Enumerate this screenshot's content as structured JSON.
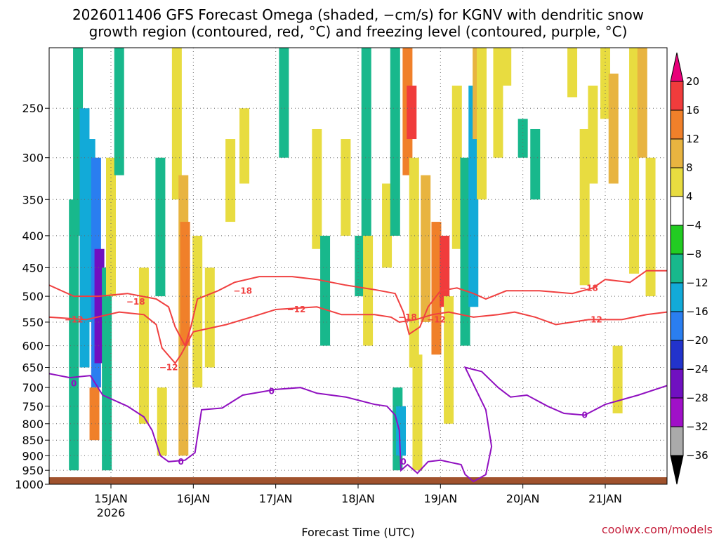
{
  "chart_data": {
    "type": "heatmap",
    "title_line1": "2026011406 GFS Forecast Omega (shaded, −cm/s) for KGNV with dendritic snow",
    "title_line2": "growth region (contoured, red, °C) and freezing level (contoured, purple, °C)",
    "xlabel": "Forecast Time (UTC)",
    "ylabel": "",
    "y_scale": "log-pressure",
    "ylim": [
      1000,
      200
    ],
    "y_ticks": [
      250,
      300,
      350,
      400,
      450,
      500,
      550,
      600,
      650,
      700,
      750,
      800,
      850,
      900,
      950,
      1000
    ],
    "x_ticks": [
      {
        "label": "15JAN",
        "sublabel": "2026",
        "day": 15
      },
      {
        "label": "16JAN",
        "day": 16
      },
      {
        "label": "17JAN",
        "day": 17
      },
      {
        "label": "18JAN",
        "day": 18
      },
      {
        "label": "19JAN",
        "day": 19
      },
      {
        "label": "20JAN",
        "day": 20
      },
      {
        "label": "21JAN",
        "day": 21
      }
    ],
    "xlim_days": [
      14.25,
      21.75
    ],
    "grid": true,
    "colorbar": {
      "labels": [
        "20",
        "16",
        "12",
        "8",
        "4",
        "−4",
        "−8",
        "−12",
        "−16",
        "−20",
        "−24",
        "−28",
        "−32",
        "−36"
      ],
      "colors": [
        "#e8007a",
        "#f03c3c",
        "#f0802a",
        "#e8b440",
        "#e8dc40",
        "#ffffff",
        "#22cc22",
        "#18b88c",
        "#12aad8",
        "#2a7ef0",
        "#2233cc",
        "#7010c0",
        "#a010c8",
        "#aaaaaa",
        "#000000"
      ]
    },
    "omega_cells": [
      {
        "day": 14.55,
        "p1": 350,
        "p2": 950,
        "val": -9
      },
      {
        "day": 14.6,
        "p1": 200,
        "p2": 400,
        "val": -8
      },
      {
        "day": 14.68,
        "p1": 250,
        "p2": 650,
        "val": -12
      },
      {
        "day": 14.75,
        "p1": 280,
        "p2": 550,
        "val": -14
      },
      {
        "day": 14.82,
        "p1": 300,
        "p2": 700,
        "val": -18
      },
      {
        "day": 14.84,
        "p1": 450,
        "p2": 600,
        "val": -38
      },
      {
        "day": 14.86,
        "p1": 420,
        "p2": 640,
        "val": -26
      },
      {
        "day": 14.8,
        "p1": 700,
        "p2": 850,
        "val": 14
      },
      {
        "day": 14.95,
        "p1": 450,
        "p2": 950,
        "val": -9
      },
      {
        "day": 15.0,
        "p1": 300,
        "p2": 500,
        "val": 5
      },
      {
        "day": 15.1,
        "p1": 180,
        "p2": 320,
        "val": -9
      },
      {
        "day": 15.4,
        "p1": 450,
        "p2": 800,
        "val": 5
      },
      {
        "day": 15.6,
        "p1": 300,
        "p2": 500,
        "val": -9
      },
      {
        "day": 15.62,
        "p1": 700,
        "p2": 900,
        "val": 5
      },
      {
        "day": 15.8,
        "p1": 200,
        "p2": 350,
        "val": 5
      },
      {
        "day": 15.88,
        "p1": 320,
        "p2": 900,
        "val": 10
      },
      {
        "day": 15.9,
        "p1": 380,
        "p2": 600,
        "val": 13
      },
      {
        "day": 16.05,
        "p1": 400,
        "p2": 700,
        "val": 5
      },
      {
        "day": 16.2,
        "p1": 450,
        "p2": 650,
        "val": 5
      },
      {
        "day": 16.45,
        "p1": 280,
        "p2": 380,
        "val": 5
      },
      {
        "day": 16.62,
        "p1": 250,
        "p2": 330,
        "val": 5
      },
      {
        "day": 17.1,
        "p1": 200,
        "p2": 300,
        "val": -9
      },
      {
        "day": 17.5,
        "p1": 270,
        "p2": 420,
        "val": 5
      },
      {
        "day": 17.6,
        "p1": 400,
        "p2": 600,
        "val": -9
      },
      {
        "day": 17.85,
        "p1": 280,
        "p2": 400,
        "val": 5
      },
      {
        "day": 18.02,
        "p1": 400,
        "p2": 500,
        "val": -9
      },
      {
        "day": 18.1,
        "p1": 200,
        "p2": 500,
        "val": -9
      },
      {
        "day": 18.12,
        "p1": 400,
        "p2": 600,
        "val": 5
      },
      {
        "day": 18.35,
        "p1": 330,
        "p2": 450,
        "val": 5
      },
      {
        "day": 18.45,
        "p1": 180,
        "p2": 400,
        "val": -9
      },
      {
        "day": 18.48,
        "p1": 700,
        "p2": 950,
        "val": -9
      },
      {
        "day": 18.52,
        "p1": 750,
        "p2": 900,
        "val": -14
      },
      {
        "day": 18.6,
        "p1": 200,
        "p2": 320,
        "val": 12
      },
      {
        "day": 18.65,
        "p1": 230,
        "p2": 280,
        "val": 18
      },
      {
        "day": 18.68,
        "p1": 300,
        "p2": 650,
        "val": 7
      },
      {
        "day": 18.72,
        "p1": 620,
        "p2": 950,
        "val": 5
      },
      {
        "day": 18.82,
        "p1": 320,
        "p2": 550,
        "val": 10
      },
      {
        "day": 18.95,
        "p1": 380,
        "p2": 620,
        "val": 12
      },
      {
        "day": 19.05,
        "p1": 400,
        "p2": 520,
        "val": 17
      },
      {
        "day": 19.1,
        "p1": 500,
        "p2": 800,
        "val": 7
      },
      {
        "day": 19.2,
        "p1": 230,
        "p2": 420,
        "val": 5
      },
      {
        "day": 19.3,
        "p1": 300,
        "p2": 600,
        "val": -9
      },
      {
        "day": 19.4,
        "p1": 230,
        "p2": 520,
        "val": -12
      },
      {
        "day": 19.45,
        "p1": 180,
        "p2": 280,
        "val": 10
      },
      {
        "day": 19.5,
        "p1": 180,
        "p2": 350,
        "val": 5
      },
      {
        "day": 19.7,
        "p1": 200,
        "p2": 300,
        "val": 5
      },
      {
        "day": 19.8,
        "p1": 180,
        "p2": 230,
        "val": 5
      },
      {
        "day": 20.0,
        "p1": 260,
        "p2": 300,
        "val": -9
      },
      {
        "day": 20.15,
        "p1": 270,
        "p2": 350,
        "val": -9
      },
      {
        "day": 20.6,
        "p1": 200,
        "p2": 240,
        "val": 5
      },
      {
        "day": 20.75,
        "p1": 270,
        "p2": 480,
        "val": 5
      },
      {
        "day": 20.85,
        "p1": 230,
        "p2": 330,
        "val": 5
      },
      {
        "day": 21.0,
        "p1": 200,
        "p2": 260,
        "val": 5
      },
      {
        "day": 21.1,
        "p1": 220,
        "p2": 330,
        "val": 8
      },
      {
        "day": 21.15,
        "p1": 600,
        "p2": 770,
        "val": 5
      },
      {
        "day": 21.35,
        "p1": 200,
        "p2": 460,
        "val": 7
      },
      {
        "day": 21.45,
        "p1": 200,
        "p2": 300,
        "val": 10
      },
      {
        "day": 21.55,
        "p1": 300,
        "p2": 500,
        "val": 5
      }
    ],
    "contours": [
      {
        "name": "-18",
        "color": "#f04040",
        "label": "−18",
        "points": [
          [
            14.25,
            480
          ],
          [
            14.55,
            500
          ],
          [
            14.85,
            500
          ],
          [
            15.2,
            495
          ],
          [
            15.55,
            505
          ],
          [
            15.7,
            520
          ],
          [
            15.78,
            560
          ],
          [
            15.9,
            600
          ],
          [
            15.97,
            560
          ],
          [
            16.05,
            505
          ],
          [
            16.3,
            490
          ],
          [
            16.5,
            475
          ],
          [
            16.8,
            465
          ],
          [
            17.2,
            465
          ],
          [
            17.5,
            470
          ],
          [
            17.85,
            480
          ],
          [
            18.2,
            488
          ],
          [
            18.45,
            495
          ],
          [
            18.55,
            530
          ],
          [
            18.62,
            575
          ],
          [
            18.75,
            560
          ],
          [
            18.85,
            520
          ],
          [
            19.0,
            490
          ],
          [
            19.2,
            485
          ],
          [
            19.4,
            495
          ],
          [
            19.55,
            505
          ],
          [
            19.8,
            490
          ],
          [
            20.2,
            490
          ],
          [
            20.6,
            495
          ],
          [
            20.85,
            485
          ],
          [
            21.0,
            470
          ],
          [
            21.3,
            475
          ],
          [
            21.5,
            455
          ],
          [
            21.75,
            455
          ]
        ],
        "label_pos": [
          [
            15.3,
            510
          ],
          [
            16.6,
            490
          ],
          [
            18.6,
            540
          ],
          [
            20.8,
            485
          ]
        ]
      },
      {
        "name": "-12",
        "color": "#f04040",
        "label": "−12",
        "points": [
          [
            14.25,
            540
          ],
          [
            14.7,
            545
          ],
          [
            15.1,
            530
          ],
          [
            15.4,
            535
          ],
          [
            15.55,
            555
          ],
          [
            15.62,
            605
          ],
          [
            15.78,
            640
          ],
          [
            15.85,
            620
          ],
          [
            16.0,
            570
          ],
          [
            16.4,
            555
          ],
          [
            16.7,
            540
          ],
          [
            17.0,
            525
          ],
          [
            17.5,
            520
          ],
          [
            17.8,
            535
          ],
          [
            18.2,
            535
          ],
          [
            18.4,
            540
          ],
          [
            18.5,
            550
          ],
          [
            18.7,
            545
          ],
          [
            18.9,
            535
          ],
          [
            19.1,
            530
          ],
          [
            19.4,
            540
          ],
          [
            19.7,
            535
          ],
          [
            19.9,
            530
          ],
          [
            20.15,
            540
          ],
          [
            20.4,
            555
          ],
          [
            20.8,
            545
          ],
          [
            21.2,
            545
          ],
          [
            21.5,
            535
          ],
          [
            21.75,
            530
          ]
        ],
        "label_pos": [
          [
            14.55,
            545
          ],
          [
            15.7,
            650
          ],
          [
            17.25,
            525
          ],
          [
            18.95,
            545
          ],
          [
            20.85,
            545
          ]
        ]
      },
      {
        "name": "0",
        "color": "#9010c0",
        "label": "0",
        "points": [
          [
            14.25,
            665
          ],
          [
            14.5,
            675
          ],
          [
            14.75,
            670
          ],
          [
            14.9,
            720
          ],
          [
            15.2,
            750
          ],
          [
            15.4,
            780
          ],
          [
            15.5,
            820
          ],
          [
            15.6,
            900
          ],
          [
            15.7,
            920
          ],
          [
            15.9,
            915
          ],
          [
            16.02,
            890
          ],
          [
            16.1,
            760
          ],
          [
            16.35,
            755
          ],
          [
            16.6,
            720
          ],
          [
            17.0,
            705
          ],
          [
            17.3,
            700
          ],
          [
            17.5,
            715
          ],
          [
            17.85,
            725
          ],
          [
            18.2,
            745
          ],
          [
            18.35,
            750
          ],
          [
            18.45,
            775
          ],
          [
            18.5,
            820
          ],
          [
            18.52,
            950
          ],
          [
            18.6,
            930
          ],
          [
            18.72,
            960
          ],
          [
            18.85,
            920
          ],
          [
            19.0,
            915
          ],
          [
            19.25,
            930
          ],
          [
            19.3,
            965
          ],
          [
            19.4,
            990
          ],
          [
            19.55,
            965
          ],
          [
            19.62,
            870
          ],
          [
            19.55,
            760
          ],
          [
            19.3,
            650
          ],
          [
            19.5,
            660
          ],
          [
            19.7,
            700
          ],
          [
            19.85,
            725
          ],
          [
            20.05,
            720
          ],
          [
            20.3,
            750
          ],
          [
            20.5,
            770
          ],
          [
            20.75,
            775
          ],
          [
            21.0,
            745
          ],
          [
            21.4,
            720
          ],
          [
            21.75,
            695
          ]
        ],
        "label_pos": [
          [
            14.55,
            690
          ],
          [
            15.85,
            920
          ],
          [
            16.95,
            710
          ],
          [
            18.55,
            920
          ],
          [
            20.75,
            775
          ]
        ]
      }
    ]
  },
  "watermark": "coolwx.com/models"
}
